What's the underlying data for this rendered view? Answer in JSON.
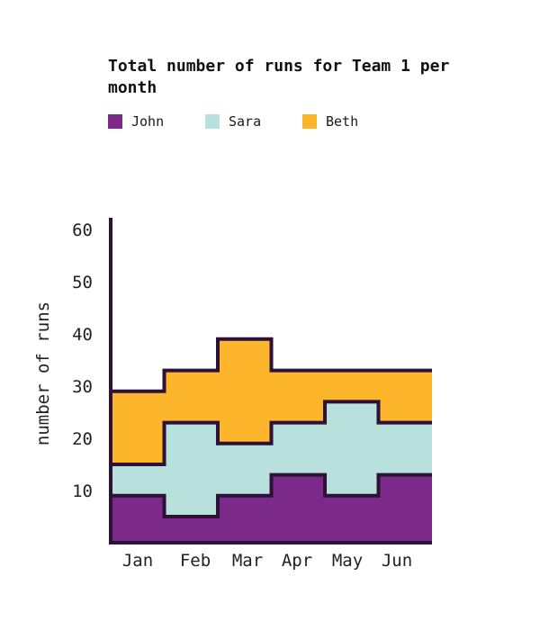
{
  "chart_data": {
    "type": "area",
    "step": true,
    "stacked": true,
    "title": "Total number of runs for Team 1 per month",
    "xlabel": "",
    "ylabel": "number of runs",
    "categories": [
      "Jan",
      "Feb",
      "Mar",
      "Apr",
      "May",
      "Jun"
    ],
    "yticks": [
      10,
      20,
      30,
      40,
      50,
      60
    ],
    "ylim": [
      0,
      63
    ],
    "series": [
      {
        "name": "John",
        "color": "#7b2a8a",
        "values": [
          9,
          5,
          9,
          13,
          9,
          13
        ]
      },
      {
        "name": "Sara",
        "color": "#b8e0dc",
        "values": [
          6,
          18,
          10,
          10,
          18,
          10
        ]
      },
      {
        "name": "Beth",
        "color": "#fdb52b",
        "values": [
          14,
          10,
          20,
          10,
          6,
          10
        ]
      }
    ],
    "legend_position": "top-left",
    "grid": false
  }
}
